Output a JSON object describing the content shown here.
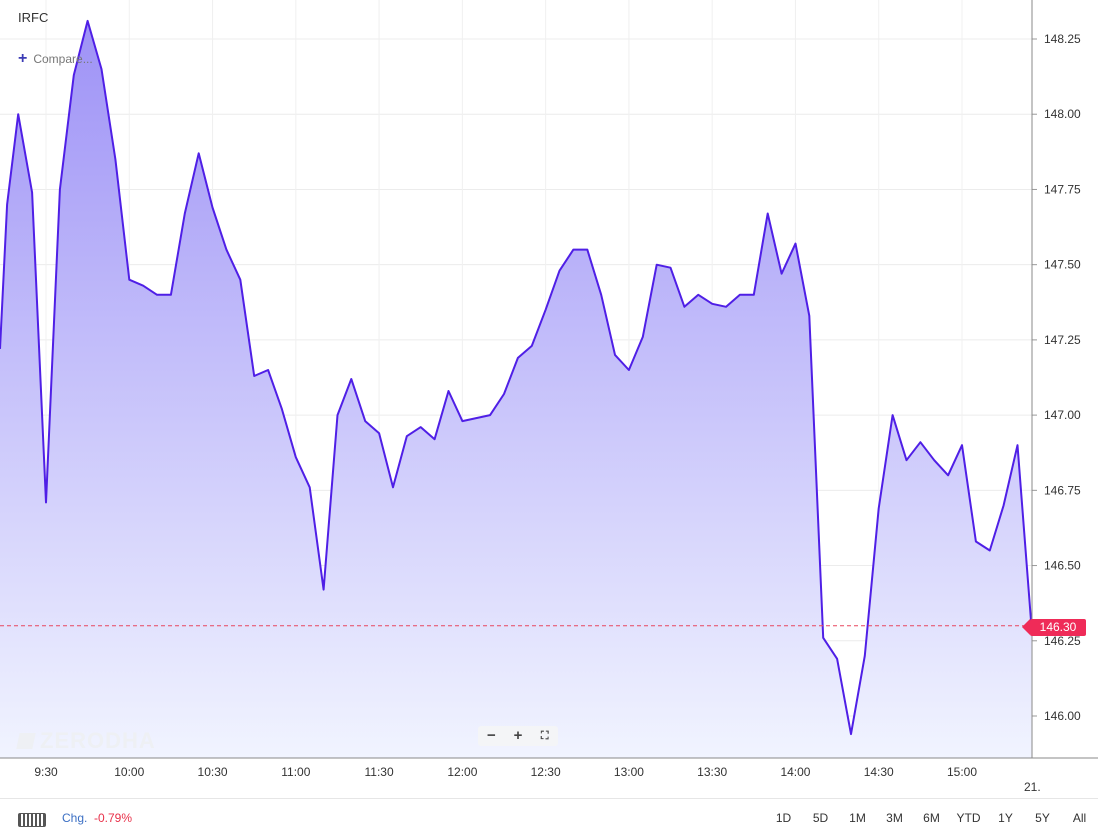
{
  "symbol": "IRFC",
  "compare_label": "Compare...",
  "watermark": "ZERODHA",
  "zoom": {
    "minus": "−",
    "plus": "+",
    "fit": "⛶"
  },
  "footer": {
    "chg_label": "Chg.",
    "chg_value": "-0.79%",
    "ranges": [
      "1D",
      "5D",
      "1M",
      "3M",
      "6M",
      "YTD",
      "1Y",
      "5Y",
      "All"
    ]
  },
  "last_price": "146.30",
  "axis_cut_label": "21.",
  "colors": {
    "line": "#4f1fe6",
    "area_top": "#9e92f6",
    "area_bottom": "#f1f4ff",
    "price_tag": "#ef2b58"
  },
  "chart_data": {
    "type": "area",
    "ylim": [
      145.9,
      148.35
    ],
    "y_ticks": [
      "146.00",
      "146.25",
      "146.50",
      "146.75",
      "147.00",
      "147.25",
      "147.50",
      "147.75",
      "148.00",
      "148.25"
    ],
    "x_ticks": [
      "9:30",
      "10:00",
      "10:30",
      "11:00",
      "11:30",
      "12:00",
      "12:30",
      "13:00",
      "13:30",
      "14:00",
      "14:30",
      "15:00"
    ],
    "last_price": 146.3,
    "series": [
      {
        "x": [
          "9:15",
          "9:16",
          "9:20",
          "9:25",
          "9:30",
          "9:35",
          "9:40",
          "9:45",
          "9:50",
          "9:55",
          "10:00",
          "10:05",
          "10:10",
          "10:15",
          "10:20",
          "10:25",
          "10:30",
          "10:35",
          "10:40",
          "10:45",
          "10:50",
          "10:55",
          "11:00",
          "11:05",
          "11:10",
          "11:15",
          "11:20",
          "11:25",
          "11:30",
          "11:35",
          "11:40",
          "11:45",
          "11:50",
          "11:55",
          "12:00",
          "12:05",
          "12:10",
          "12:15",
          "12:20",
          "12:25",
          "12:30",
          "12:35",
          "12:40",
          "12:45",
          "12:50",
          "12:55",
          "13:00",
          "13:05",
          "13:10",
          "13:15",
          "13:20",
          "13:25",
          "13:30",
          "13:35",
          "13:40",
          "13:45",
          "13:50",
          "13:55",
          "14:00",
          "14:05",
          "14:10",
          "14:15",
          "14:20",
          "14:25",
          "14:30",
          "14:35",
          "14:40",
          "14:45",
          "14:50",
          "14:55",
          "15:00",
          "15:05",
          "15:10",
          "15:15",
          "15:20",
          "15:25"
        ],
        "values": [
          147.22,
          147.7,
          148.0,
          147.74,
          146.71,
          147.75,
          148.13,
          148.31,
          148.15,
          147.85,
          147.45,
          147.43,
          147.4,
          147.4,
          147.67,
          147.87,
          147.69,
          147.55,
          147.45,
          147.13,
          147.15,
          147.02,
          146.86,
          146.76,
          146.42,
          147.0,
          147.12,
          146.98,
          146.94,
          146.76,
          146.93,
          146.96,
          146.92,
          147.08,
          146.98,
          146.99,
          147.0,
          147.07,
          147.19,
          147.23,
          147.35,
          147.48,
          147.55,
          147.55,
          147.4,
          147.2,
          147.15,
          147.26,
          147.5,
          147.49,
          147.36,
          147.4,
          147.37,
          147.36,
          147.4,
          147.4,
          147.67,
          147.47,
          147.57,
          147.33,
          146.26,
          146.19,
          145.94,
          146.2,
          146.69,
          147.0,
          146.85,
          146.91,
          146.85,
          146.8,
          146.9,
          146.58,
          146.55,
          146.7,
          146.9,
          146.3
        ]
      }
    ]
  }
}
